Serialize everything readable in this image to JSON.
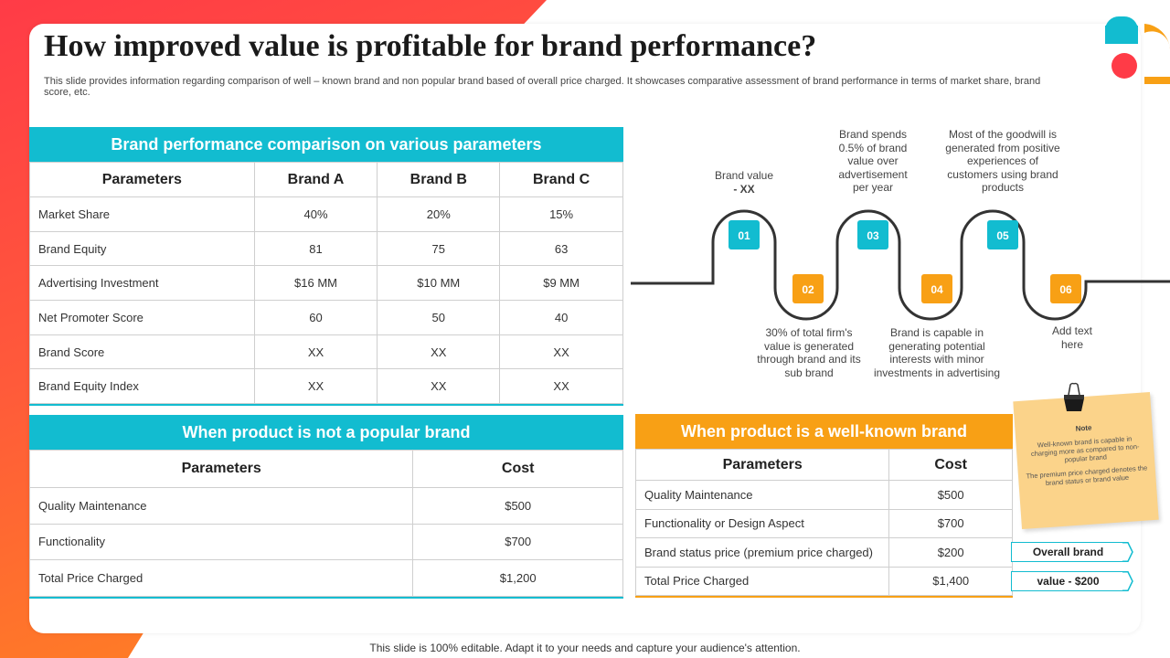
{
  "title": "How improved  value is profitable for brand performance?",
  "subtitle": "This slide provides information regarding comparison of well – known brand and non popular brand based of overall price charged. It showcases comparative assessment of brand performance in terms of market share, brand score, etc.",
  "colors": {
    "teal": "#12bcd0",
    "orange": "#f8a015",
    "red": "#ff3b47"
  },
  "performance_table": {
    "heading": "Brand performance comparison on various parameters",
    "columns": [
      "Parameters",
      "Brand A",
      "Brand B",
      "Brand C"
    ],
    "rows": [
      [
        "Market Share",
        "40%",
        "20%",
        "15%"
      ],
      [
        "Brand Equity",
        "81",
        "75",
        "63"
      ],
      [
        "Advertising  Investment",
        "$16 MM",
        "$10 MM",
        "$9 MM"
      ],
      [
        "Net Promoter  Score",
        "60",
        "50",
        "40"
      ],
      [
        "Brand Score",
        "XX",
        "XX",
        "XX"
      ],
      [
        "Brand Equity Index",
        "XX",
        "XX",
        "XX"
      ]
    ]
  },
  "not_popular_table": {
    "heading": "When product is not a popular brand",
    "columns": [
      "Parameters",
      "Cost"
    ],
    "rows": [
      [
        "Quality Maintenance",
        "$500"
      ],
      [
        "Functionality",
        "$700"
      ],
      [
        "Total Price Charged",
        "$1,200"
      ]
    ]
  },
  "well_known_table": {
    "heading": "When product is a well-known brand",
    "columns": [
      "Parameters",
      "Cost"
    ],
    "rows": [
      [
        "Quality Maintenance",
        "$500"
      ],
      [
        "Functionality or Design Aspect",
        "$700"
      ],
      [
        "Brand status price (premium  price charged)",
        "$200"
      ],
      [
        "Total Price Charged",
        "$1,400"
      ]
    ]
  },
  "flow": {
    "steps": [
      {
        "num": "01",
        "text_line1": "Brand value",
        "text_line2": "- XX"
      },
      {
        "num": "02",
        "text": "30% of total firm's value is generated through brand and its sub brand"
      },
      {
        "num": "03",
        "text": "Brand spends 0.5% of brand value over advertisement per year"
      },
      {
        "num": "04",
        "text": "Brand is capable in generating potential interests with minor investments in advertising"
      },
      {
        "num": "05",
        "text": "Most of the goodwill is generated from positive experiences of customers using brand products"
      },
      {
        "num": "06",
        "text": "Add text here"
      }
    ]
  },
  "note": {
    "title": "Note",
    "para1": "Well-known brand is capable in charging  more as compared  to non-popular brand",
    "para2": "The premium price charged denotes  the brand status or brand value"
  },
  "tags": {
    "line1": "Overall brand",
    "line2": "value - $200"
  },
  "footer": "This slide is 100% editable. Adapt it to your needs and capture your audience's attention."
}
